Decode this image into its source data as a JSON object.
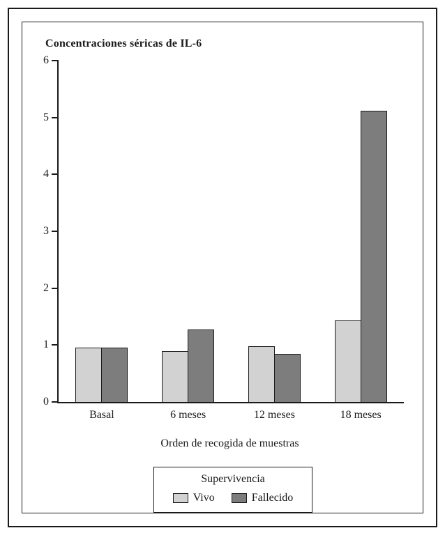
{
  "chart_data": {
    "type": "bar",
    "title": "Concentraciones séricas de IL-6",
    "xlabel": "Orden de recogida de muestras",
    "ylabel": "",
    "categories": [
      "Basal",
      "6 meses",
      "12 meses",
      "18 meses"
    ],
    "series": [
      {
        "name": "Vivo",
        "color": "#d2d2d2",
        "values": [
          0.95,
          0.9,
          0.98,
          1.43
        ]
      },
      {
        "name": "Fallecido",
        "color": "#7d7d7d",
        "values": [
          0.95,
          1.27,
          0.84,
          5.12
        ]
      }
    ],
    "ylim": [
      0,
      6
    ],
    "yticks": [
      0,
      1,
      2,
      3,
      4,
      5,
      6
    ],
    "grid": false,
    "legend": {
      "title": "Supervivencia",
      "position": "bottom"
    }
  }
}
